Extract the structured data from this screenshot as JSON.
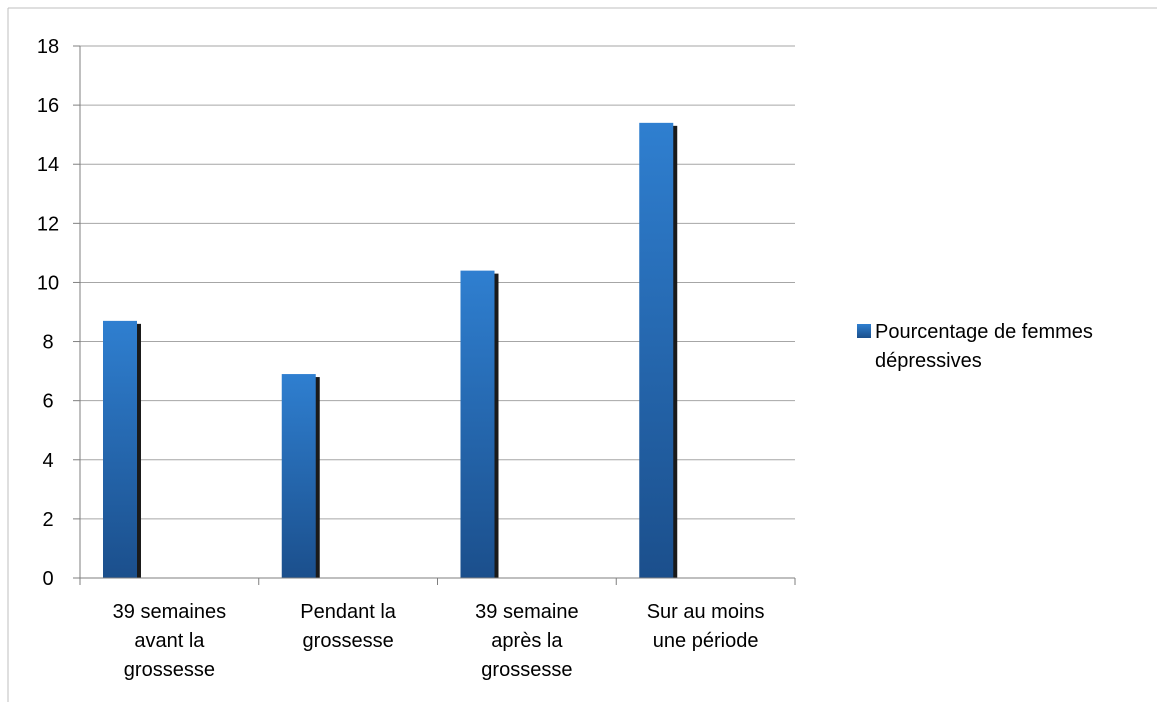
{
  "chart_data": {
    "type": "bar",
    "categories": [
      [
        "39 semaines",
        "avant la",
        "grossesse"
      ],
      [
        "Pendant la",
        "grossesse"
      ],
      [
        "39 semaine",
        "après la",
        "grossesse"
      ],
      [
        "Sur au moins",
        "une période"
      ]
    ],
    "series": [
      {
        "name": "Pourcentage de femmes dépressives",
        "values": [
          8.7,
          6.9,
          10.4,
          15.4
        ]
      }
    ],
    "ylim": [
      0,
      18
    ],
    "yticks": [
      0,
      2,
      4,
      6,
      8,
      10,
      12,
      14,
      16,
      18
    ],
    "grid": true,
    "legend": {
      "placement": "right",
      "lines": [
        "Pourcentage de femmes",
        "dépressives"
      ]
    },
    "colors": {
      "bar_light": "#2f7fd0",
      "bar_dark": "#1b4f8c",
      "bar_shadow": "#1a1a1a"
    },
    "title": "",
    "xlabel": "",
    "ylabel": ""
  }
}
